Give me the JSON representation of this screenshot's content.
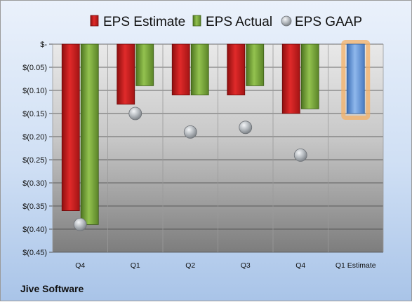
{
  "company": "Jive Software",
  "chart_data": {
    "type": "bar",
    "categories": [
      "Q4",
      "Q1",
      "Q2",
      "Q3",
      "Q4",
      "Q1 Estimate"
    ],
    "series": [
      {
        "name": "EPS Estimate",
        "color": "#cc1f1f",
        "values": [
          -0.36,
          -0.13,
          -0.11,
          -0.11,
          -0.15,
          null
        ]
      },
      {
        "name": "EPS Actual",
        "color": "#7aa63a",
        "values": [
          -0.39,
          -0.09,
          -0.11,
          -0.09,
          -0.14,
          null
        ]
      },
      {
        "name": "EPS GAAP",
        "color": "#b0b4b8",
        "values": [
          -0.39,
          -0.15,
          -0.19,
          -0.18,
          -0.24,
          null
        ]
      }
    ],
    "estimate": {
      "category": "Q1 Estimate",
      "value": -0.15,
      "color": "#5e95d8",
      "highlight": "#f4b066"
    },
    "ylim": [
      -0.45,
      0
    ],
    "ytick_values": [
      0,
      -0.05,
      -0.1,
      -0.15,
      -0.2,
      -0.25,
      -0.3,
      -0.35,
      -0.4,
      -0.45
    ],
    "ytick_labels": [
      "$-",
      "$(0.05)",
      "$(0.10)",
      "$(0.15)",
      "$(0.20)",
      "$(0.25)",
      "$(0.30)",
      "$(0.35)",
      "$(0.40)",
      "$(0.45)"
    ],
    "grid": true,
    "legend": "top",
    "title": "",
    "xlabel": "",
    "ylabel": ""
  }
}
